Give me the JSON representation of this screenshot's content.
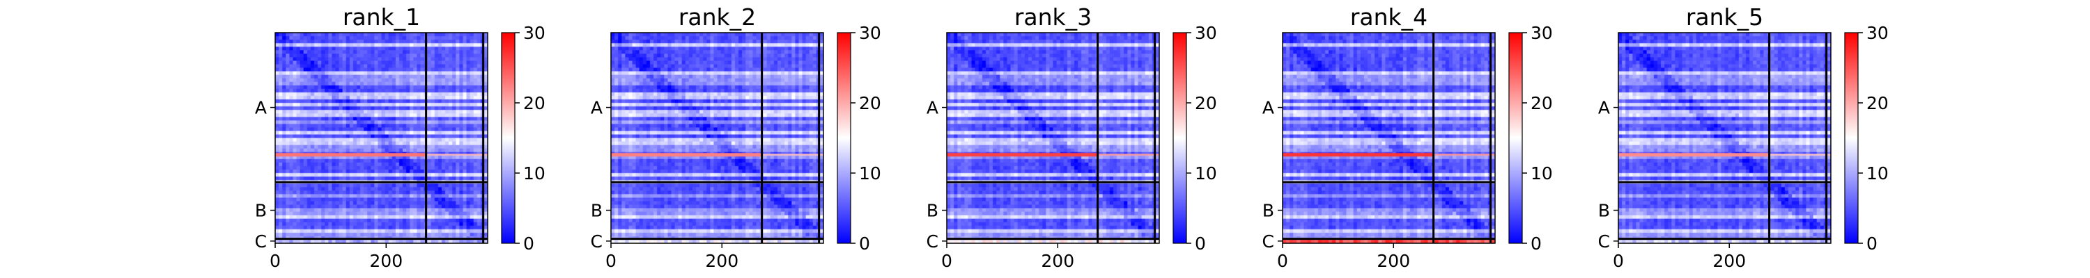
{
  "colors": {
    "low": "#0000ff",
    "mid": "#ffffff",
    "high": "#ff0000",
    "frame": "#000000",
    "chain_boundary": "#000000"
  },
  "chart_data": {
    "type": "heatmap",
    "colormap": "bwr",
    "color_range": [
      0,
      30
    ],
    "colorbar_ticks": [
      "0",
      "10",
      "20",
      "30"
    ],
    "x_ticks": [
      {
        "value": 0,
        "label": "0"
      },
      {
        "value": 200,
        "label": "200"
      }
    ],
    "x_range": [
      0,
      383
    ],
    "y_range": [
      0,
      383
    ],
    "chain_boundaries": [
      272,
      375
    ],
    "chain_labels": [
      {
        "center": 136,
        "label": "A"
      },
      {
        "center": 323,
        "label": "B"
      },
      {
        "center": 379,
        "label": "C"
      }
    ],
    "panels": [
      {
        "title": "rank_1",
        "hot_rows": [
          {
            "row": 222,
            "strength": 0.55,
            "x_end": 272
          }
        ],
        "chain_c_level": 0.35
      },
      {
        "title": "rank_2",
        "hot_rows": [
          {
            "row": 222,
            "strength": 0.5,
            "x_end": 272
          }
        ],
        "chain_c_level": 0.45
      },
      {
        "title": "rank_3",
        "hot_rows": [
          {
            "row": 222,
            "strength": 0.75,
            "x_end": 272
          }
        ],
        "chain_c_level": 0.5
      },
      {
        "title": "rank_4",
        "hot_rows": [
          {
            "row": 222,
            "strength": 0.8,
            "x_end": 272
          }
        ],
        "chain_c_level": 0.85
      },
      {
        "title": "rank_5",
        "hot_rows": [
          {
            "row": 222,
            "strength": 0.45,
            "x_end": 272
          }
        ],
        "chain_c_level": 0.4
      }
    ]
  }
}
